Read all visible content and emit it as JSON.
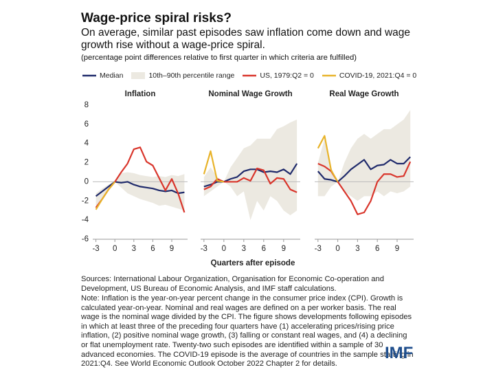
{
  "header": {
    "title": "Wage-price spiral risks?",
    "subtitle": "On average, similar past episodes saw inflation come down and wage growth rise without a wage-price spiral.",
    "note": "(percentage point differences relative to first quarter in which criteria are fulfilled)"
  },
  "axis_label": "Quarters after episode",
  "chart_data": [
    {
      "type": "line",
      "title": "Inflation",
      "x": [
        -3,
        -2,
        -1,
        0,
        1,
        2,
        3,
        4,
        5,
        6,
        7,
        8,
        9,
        10,
        11
      ],
      "xlim": [
        -3.5,
        11.5
      ],
      "xticks": [
        -3,
        0,
        3,
        6,
        9
      ],
      "ylim": [
        -6,
        8
      ],
      "yticks": [
        -6,
        -4,
        -2,
        0,
        2,
        4,
        6,
        8
      ],
      "band": {
        "name": "10th–90th percentile range",
        "color": "#ece9e1",
        "lower": [
          -2.6,
          -1.8,
          -0.9,
          0,
          -0.6,
          -1.2,
          -1.5,
          -1.8,
          -2,
          -2.2,
          -2.5,
          -2.4,
          -2.6,
          -2.8,
          -3
        ],
        "upper": [
          -1.2,
          -0.7,
          -0.3,
          0,
          0.9,
          1,
          0.9,
          0.7,
          0.6,
          0.5,
          0.6,
          0.5,
          0.7,
          0.6,
          0.8
        ]
      },
      "series": [
        {
          "name": "Median",
          "color": "#1f2a6b",
          "values": [
            -1.5,
            -1,
            -0.5,
            0,
            -0.1,
            0,
            -0.3,
            -0.5,
            -0.6,
            -0.7,
            -0.9,
            -1,
            -0.9,
            -1.2,
            -1.1
          ]
        },
        {
          "name": "US, 1979:Q2 = 0",
          "color": "#d9352b",
          "values": [
            -2.7,
            -1.8,
            -0.8,
            0,
            1,
            1.9,
            3.4,
            3.6,
            2.1,
            1.7,
            0.4,
            -0.9,
            0.3,
            -1.2,
            -3.2
          ]
        },
        {
          "name": "COVID-19, 2021:Q4 = 0",
          "color": "#e8b32a",
          "values": [
            -2.9,
            -1.8,
            -0.8,
            0,
            null,
            null,
            null,
            null,
            null,
            null,
            null,
            null,
            null,
            null,
            null
          ]
        }
      ]
    },
    {
      "type": "line",
      "title": "Nominal Wage Growth",
      "x": [
        -3,
        -2,
        -1,
        0,
        1,
        2,
        3,
        4,
        5,
        6,
        7,
        8,
        9,
        10,
        11
      ],
      "xlim": [
        -3.5,
        11.5
      ],
      "xticks": [
        -3,
        0,
        3,
        6,
        9
      ],
      "ylim": [
        -6,
        8
      ],
      "band": {
        "color": "#ece9e1",
        "lower": [
          -1.5,
          -1,
          -0.5,
          0,
          -0.5,
          -1.5,
          -1,
          -4,
          -2,
          -3,
          -1.5,
          -2,
          -3,
          -3.5,
          -3
        ],
        "upper": [
          0.5,
          1.5,
          0.5,
          0,
          1.5,
          2.5,
          3.5,
          3.8,
          4.5,
          4.5,
          4.5,
          5.5,
          5.8,
          6.2,
          6.5
        ]
      },
      "series": [
        {
          "color": "#1f2a6b",
          "values": [
            -0.5,
            -0.3,
            0,
            0,
            0.3,
            0.5,
            1.1,
            1.3,
            1.3,
            1,
            1.1,
            1,
            1.3,
            0.8,
            1.9
          ]
        },
        {
          "color": "#d9352b",
          "values": [
            -0.8,
            -0.5,
            0.3,
            0,
            0,
            0,
            0.4,
            0.1,
            1.4,
            1.2,
            -0.2,
            0.4,
            0.3,
            -0.8,
            -1.1
          ]
        },
        {
          "color": "#e8b32a",
          "values": [
            0.8,
            3.2,
            0.1,
            0,
            null,
            null,
            null,
            null,
            null,
            null,
            null,
            null,
            null,
            null,
            null
          ]
        }
      ]
    },
    {
      "type": "line",
      "title": "Real Wage Growth",
      "x": [
        -3,
        -2,
        -1,
        0,
        1,
        2,
        3,
        4,
        5,
        6,
        7,
        8,
        9,
        10,
        11
      ],
      "xlim": [
        -3.5,
        11.5
      ],
      "xticks": [
        -3,
        0,
        3,
        6,
        9
      ],
      "ylim": [
        -6,
        8
      ],
      "band": {
        "color": "#ece9e1",
        "lower": [
          -1.5,
          -1.5,
          -0.5,
          0,
          -1,
          -1.5,
          -2,
          -1.5,
          -1.5,
          -1,
          -1.5,
          -1,
          -1.2,
          -1,
          -0.5
        ],
        "upper": [
          2,
          4.5,
          1.5,
          0,
          2,
          3.5,
          4.5,
          5,
          4.5,
          5,
          5.5,
          5.5,
          6,
          6.5,
          7.5
        ]
      },
      "series": [
        {
          "color": "#1f2a6b",
          "values": [
            1.1,
            0.3,
            0.2,
            0,
            0.6,
            1.3,
            1.8,
            2.3,
            1.3,
            1.7,
            1.8,
            2.3,
            1.9,
            1.9,
            2.6
          ]
        },
        {
          "color": "#d9352b",
          "values": [
            1.9,
            1.6,
            1.1,
            0,
            -1,
            -2,
            -3.4,
            -3.2,
            -2,
            0,
            0.8,
            0.8,
            0.5,
            0.6,
            2.1
          ]
        },
        {
          "color": "#e8b32a",
          "values": [
            3.5,
            4.8,
            1.2,
            0,
            null,
            null,
            null,
            null,
            null,
            null,
            null,
            null,
            null,
            null,
            null
          ]
        }
      ]
    }
  ],
  "footer": {
    "sources": "Sources: International Labour Organization, Organisation for Economic Co-operation and Development, US Bureau of Economic Analysis, and IMF staff calculations.",
    "note": "Note: Inflation is the year-on-year percent change in the consumer price index (CPI). Growth is calculated year-on-year. Nominal and real wages are defined on a per worker basis. The real wage is the nominal wage divided by the CPI. The figure shows developments following episodes in which at least three of the preceding four quarters have (1) accelerating prices/rising price inflation, (2) positive nominal wage growth, (3) falling or constant real wages, and (4) a declining or flat unemployment rate. Twenty-two such episodes are identified within a sample of 30 advanced economies. The COVID-19 episode is the average of countries in the sample starting in 2021:Q4. See World Economic Outlook October 2022 Chapter 2 for details.",
    "logo": "IMF"
  }
}
